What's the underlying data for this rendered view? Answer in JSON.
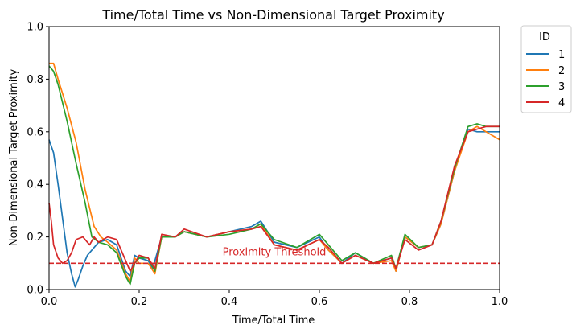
{
  "chart_data": {
    "type": "line",
    "title": "Time/Total Time vs Non-Dimensional Target Proximity",
    "xlabel": "Time/Total Time",
    "ylabel": "Non-Dimensional Target Proximity",
    "xlim": [
      0,
      1
    ],
    "ylim": [
      0,
      1
    ],
    "xticks": [
      "0.0",
      "0.2",
      "0.4",
      "0.6",
      "0.8",
      "1.0"
    ],
    "yticks": [
      "0.0",
      "0.2",
      "0.4",
      "0.6",
      "0.8",
      "1.0"
    ],
    "grid": false,
    "legend": {
      "title": "ID",
      "placement": "outside-top-right"
    },
    "threshold": {
      "y": 0.1,
      "label": "Proximity Threshold",
      "color": "#d62728",
      "style": "dashed"
    },
    "series": [
      {
        "name": "1",
        "color": "#1f77b4",
        "x": [
          0,
          0.01,
          0.02,
          0.03,
          0.04,
          0.05,
          0.058,
          0.065,
          0.075,
          0.085,
          0.095,
          0.11,
          0.13,
          0.15,
          0.17,
          0.18,
          0.19,
          0.2,
          0.22,
          0.23,
          0.25,
          0.28,
          0.3,
          0.35,
          0.4,
          0.45,
          0.47,
          0.5,
          0.55,
          0.6,
          0.62,
          0.65,
          0.68,
          0.72,
          0.76,
          0.77,
          0.79,
          0.82,
          0.85,
          0.87,
          0.9,
          0.93,
          0.95,
          0.97,
          1.0
        ],
        "y": [
          0.57,
          0.52,
          0.4,
          0.27,
          0.14,
          0.06,
          0.01,
          0.04,
          0.09,
          0.13,
          0.15,
          0.18,
          0.19,
          0.17,
          0.07,
          0.05,
          0.13,
          0.12,
          0.11,
          0.08,
          0.2,
          0.2,
          0.22,
          0.2,
          0.22,
          0.24,
          0.26,
          0.18,
          0.16,
          0.2,
          0.15,
          0.1,
          0.14,
          0.1,
          0.12,
          0.07,
          0.2,
          0.16,
          0.17,
          0.25,
          0.45,
          0.61,
          0.6,
          0.6,
          0.6
        ]
      },
      {
        "name": "2",
        "color": "#ff7f0e",
        "x": [
          0,
          0.01,
          0.02,
          0.04,
          0.06,
          0.08,
          0.1,
          0.115,
          0.13,
          0.15,
          0.17,
          0.18,
          0.19,
          0.2,
          0.22,
          0.235,
          0.25,
          0.28,
          0.3,
          0.35,
          0.4,
          0.45,
          0.47,
          0.5,
          0.55,
          0.6,
          0.62,
          0.65,
          0.68,
          0.72,
          0.76,
          0.77,
          0.79,
          0.82,
          0.85,
          0.87,
          0.9,
          0.93,
          0.95,
          0.97,
          1.0
        ],
        "y": [
          0.86,
          0.86,
          0.8,
          0.69,
          0.56,
          0.38,
          0.24,
          0.2,
          0.18,
          0.15,
          0.06,
          0.03,
          0.12,
          0.1,
          0.1,
          0.06,
          0.2,
          0.2,
          0.22,
          0.2,
          0.22,
          0.23,
          0.25,
          0.17,
          0.15,
          0.19,
          0.15,
          0.1,
          0.13,
          0.1,
          0.11,
          0.07,
          0.2,
          0.16,
          0.17,
          0.25,
          0.45,
          0.6,
          0.62,
          0.6,
          0.57
        ]
      },
      {
        "name": "3",
        "color": "#2ca02c",
        "x": [
          0,
          0.01,
          0.02,
          0.04,
          0.06,
          0.08,
          0.095,
          0.11,
          0.13,
          0.15,
          0.17,
          0.18,
          0.19,
          0.2,
          0.22,
          0.235,
          0.25,
          0.28,
          0.3,
          0.35,
          0.4,
          0.45,
          0.47,
          0.5,
          0.55,
          0.6,
          0.62,
          0.65,
          0.68,
          0.72,
          0.76,
          0.77,
          0.79,
          0.82,
          0.85,
          0.87,
          0.9,
          0.93,
          0.95,
          0.97,
          1.0
        ],
        "y": [
          0.85,
          0.83,
          0.78,
          0.64,
          0.48,
          0.33,
          0.2,
          0.18,
          0.17,
          0.14,
          0.05,
          0.02,
          0.1,
          0.12,
          0.12,
          0.07,
          0.2,
          0.2,
          0.22,
          0.2,
          0.21,
          0.23,
          0.25,
          0.19,
          0.16,
          0.21,
          0.17,
          0.11,
          0.14,
          0.1,
          0.13,
          0.08,
          0.21,
          0.16,
          0.17,
          0.26,
          0.46,
          0.62,
          0.63,
          0.62,
          0.62
        ]
      },
      {
        "name": "4",
        "color": "#d62728",
        "x": [
          0,
          0.005,
          0.01,
          0.02,
          0.03,
          0.04,
          0.05,
          0.06,
          0.075,
          0.09,
          0.1,
          0.11,
          0.13,
          0.15,
          0.165,
          0.18,
          0.19,
          0.2,
          0.22,
          0.235,
          0.25,
          0.28,
          0.3,
          0.35,
          0.4,
          0.45,
          0.47,
          0.5,
          0.55,
          0.6,
          0.62,
          0.65,
          0.68,
          0.72,
          0.76,
          0.77,
          0.79,
          0.82,
          0.85,
          0.87,
          0.9,
          0.93,
          0.95,
          0.97,
          1.0
        ],
        "y": [
          0.33,
          0.26,
          0.17,
          0.12,
          0.1,
          0.11,
          0.14,
          0.19,
          0.2,
          0.17,
          0.2,
          0.18,
          0.2,
          0.19,
          0.13,
          0.07,
          0.1,
          0.13,
          0.12,
          0.08,
          0.21,
          0.2,
          0.23,
          0.2,
          0.22,
          0.23,
          0.24,
          0.17,
          0.15,
          0.19,
          0.16,
          0.1,
          0.13,
          0.1,
          0.12,
          0.08,
          0.19,
          0.15,
          0.17,
          0.26,
          0.47,
          0.6,
          0.61,
          0.62,
          0.62
        ]
      }
    ]
  }
}
